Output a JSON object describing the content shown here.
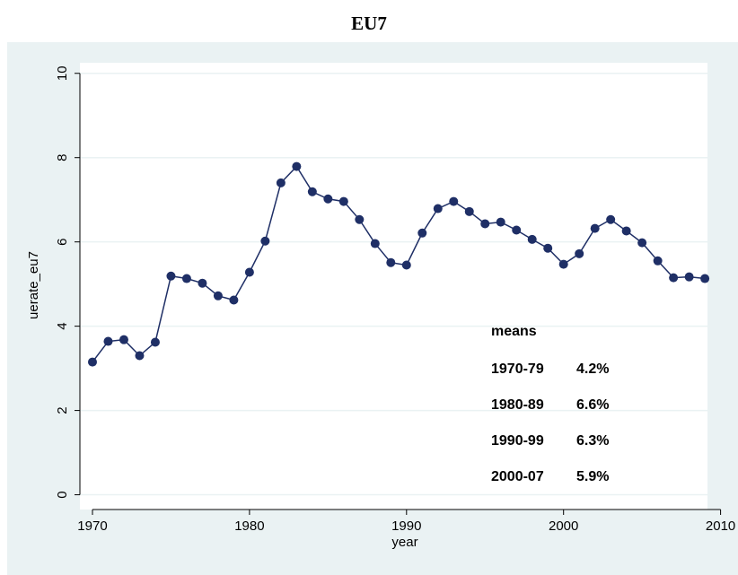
{
  "chart_data": {
    "type": "line",
    "title": "EU7",
    "x_label": "year",
    "y_label": "uerate_eu7",
    "x": [
      1970,
      1971,
      1972,
      1973,
      1974,
      1975,
      1976,
      1977,
      1978,
      1979,
      1980,
      1981,
      1982,
      1983,
      1984,
      1985,
      1986,
      1987,
      1988,
      1989,
      1990,
      1991,
      1992,
      1993,
      1994,
      1995,
      1996,
      1997,
      1998,
      1999,
      2000,
      2001,
      2002,
      2003,
      2004,
      2005,
      2006,
      2007,
      2008,
      2009
    ],
    "series": [
      {
        "name": "uerate_eu7",
        "color": "#1f2f66",
        "values": [
          3.15,
          3.64,
          3.68,
          3.3,
          3.62,
          5.19,
          5.13,
          5.02,
          4.72,
          4.62,
          5.28,
          6.02,
          7.4,
          7.79,
          7.19,
          7.02,
          6.96,
          6.53,
          5.96,
          5.51,
          5.45,
          6.21,
          6.79,
          6.96,
          6.72,
          6.43,
          6.47,
          6.28,
          6.06,
          5.85,
          5.47,
          5.72,
          6.32,
          6.53,
          6.26,
          5.98,
          5.55,
          5.15,
          5.17,
          5.13
        ]
      }
    ],
    "xlim": [
      1969.2,
      2010
    ],
    "xticks": [
      1970,
      1980,
      1990,
      2000,
      2010
    ],
    "ylim": [
      -0.35,
      10.25
    ],
    "yticks": [
      0,
      2,
      4,
      6,
      8,
      10
    ],
    "grid": true,
    "annotation": {
      "title": "means",
      "rows": [
        [
          "1970-79",
          "4.2%"
        ],
        [
          "1980-89",
          "6.6%"
        ],
        [
          "1990-99",
          "6.3%"
        ],
        [
          "2000-07",
          "5.9%"
        ]
      ]
    }
  }
}
